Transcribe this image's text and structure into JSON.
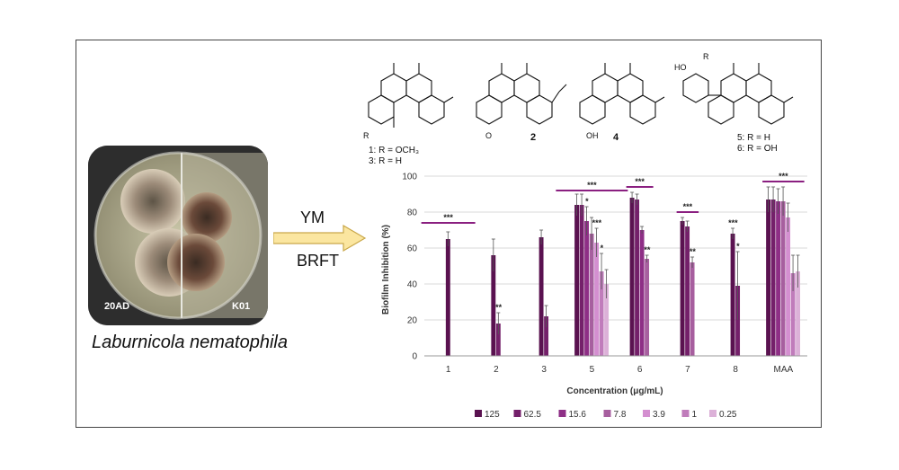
{
  "plate": {
    "left_strain": "20AD",
    "right_strain": "K01",
    "species": "Laburnicola nematophila"
  },
  "arrow": {
    "top_label": "YM",
    "bottom_label": "BRFT"
  },
  "compounds": {
    "c1": {
      "compound_labels": [
        "1: R = OCH₃",
        "3: R = H"
      ],
      "sub": "R"
    },
    "c2": {
      "compound_label": "2",
      "sub": "O"
    },
    "c4": {
      "compound_label": "4",
      "sub": "OH"
    },
    "c5": {
      "compound_labels": [
        "5: R = H",
        "6: R = OH"
      ],
      "sub": "R",
      "phenol": "HO"
    }
  },
  "chart_data": {
    "type": "bar",
    "xlabel": "Concentration (μg/mL)",
    "ylabel": "Biofilm Inhibition (%)",
    "ylim": [
      0,
      100
    ],
    "yticks": [
      0,
      20,
      40,
      60,
      80,
      100
    ],
    "grid": true,
    "legend_position": "bottom",
    "categories": [
      "1",
      "2",
      "3",
      "5",
      "6",
      "7",
      "8",
      "MAA"
    ],
    "series": [
      {
        "name": "125",
        "color": "#5a1250",
        "values": [
          65,
          56,
          66,
          84,
          88,
          75,
          68,
          87
        ],
        "errors": [
          4,
          9,
          4,
          6,
          3,
          2,
          3,
          7
        ]
      },
      {
        "name": "62.5",
        "color": "#74206a",
        "values": [
          null,
          18,
          22,
          84,
          87,
          72,
          39,
          87
        ],
        "errors": [
          null,
          6,
          6,
          6,
          3,
          3,
          19,
          7
        ]
      },
      {
        "name": "15.6",
        "color": "#8e2f86",
        "values": [
          null,
          null,
          null,
          75,
          70,
          null,
          null,
          86
        ],
        "errors": [
          null,
          null,
          null,
          8,
          2,
          null,
          null,
          7
        ]
      },
      {
        "name": "7.8",
        "color": "#a75f9f",
        "values": [
          null,
          null,
          null,
          68,
          54,
          52,
          null,
          86
        ],
        "errors": [
          null,
          null,
          null,
          9,
          2,
          3,
          null,
          8
        ]
      },
      {
        "name": "3.9",
        "color": "#d48fd0",
        "values": [
          null,
          null,
          null,
          63,
          null,
          null,
          null,
          77
        ],
        "errors": [
          null,
          null,
          null,
          8,
          null,
          null,
          null,
          8
        ]
      },
      {
        "name": "1",
        "color": "#c07cbb",
        "values": [
          null,
          null,
          null,
          47,
          null,
          null,
          null,
          46
        ],
        "errors": [
          null,
          null,
          null,
          10,
          null,
          null,
          null,
          10
        ]
      },
      {
        "name": "0.25",
        "color": "#dcb1d8",
        "values": [
          null,
          null,
          null,
          40,
          null,
          null,
          null,
          47
        ],
        "errors": [
          null,
          null,
          null,
          8,
          null,
          null,
          null,
          9
        ]
      }
    ],
    "significance": [
      {
        "group": "1",
        "label": "***",
        "bracket": true
      },
      {
        "group": "2",
        "label": "**",
        "series": "62.5"
      },
      {
        "group": "5",
        "label": "***",
        "bracket": true
      },
      {
        "group": "5",
        "label": "*",
        "series": "15.6"
      },
      {
        "group": "5",
        "label": "***",
        "series": "3.9"
      },
      {
        "group": "5",
        "label": "*",
        "series": "1"
      },
      {
        "group": "6",
        "label": "***",
        "bracket": true
      },
      {
        "group": "6",
        "label": "**",
        "series": "7.8"
      },
      {
        "group": "7",
        "label": "***",
        "bracket": true
      },
      {
        "group": "7",
        "label": "**",
        "series": "7.8"
      },
      {
        "group": "8",
        "label": "***",
        "series": "125"
      },
      {
        "group": "8",
        "label": "*",
        "series": "62.5"
      },
      {
        "group": "MAA",
        "label": "***",
        "bracket": true
      }
    ]
  }
}
